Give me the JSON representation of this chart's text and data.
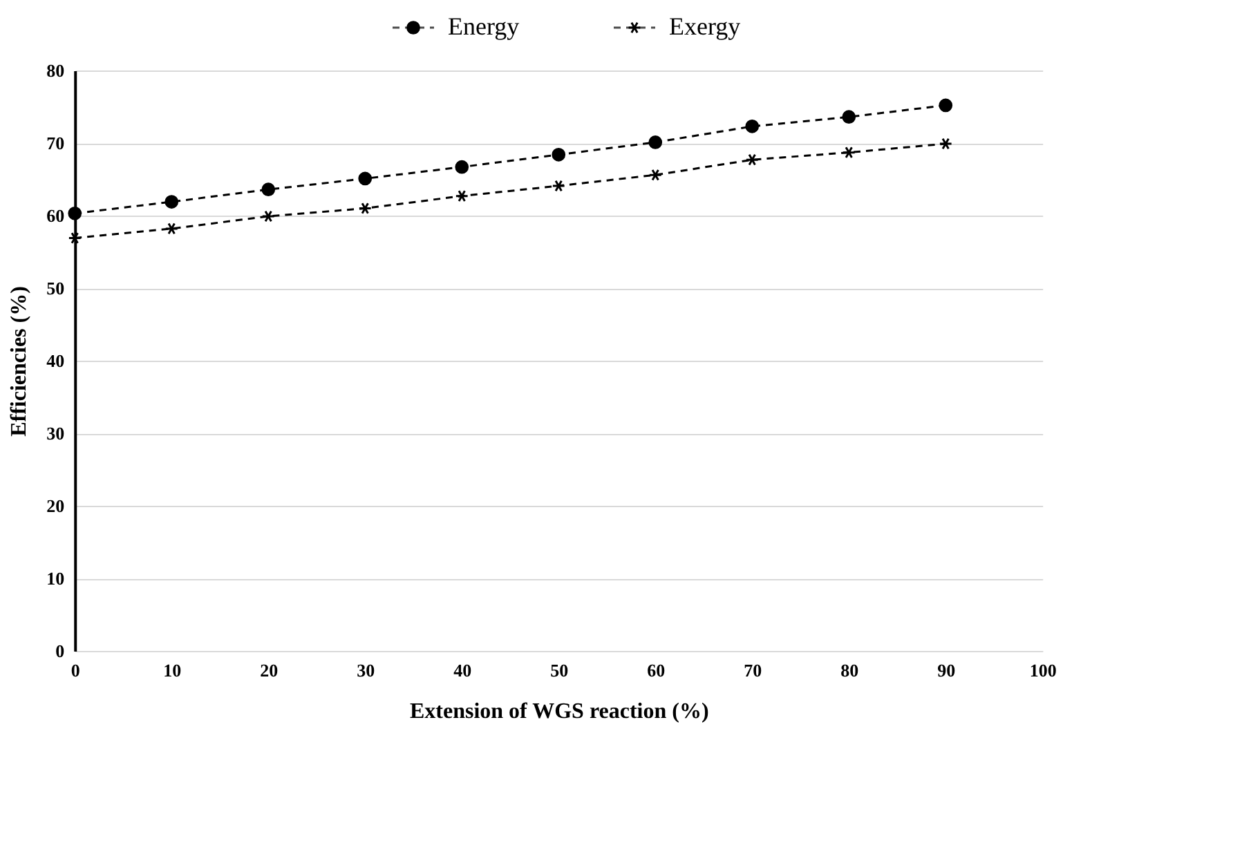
{
  "chart_data": {
    "type": "line",
    "xlabel": "Extension of WGS reaction (%)",
    "ylabel": "Efficiencies (%)",
    "x": [
      0,
      10,
      20,
      30,
      40,
      50,
      60,
      70,
      80,
      90
    ],
    "series": [
      {
        "name": "Energy",
        "color": "#000000",
        "marker": "circle",
        "values": [
          60.3,
          61.9,
          63.6,
          65.1,
          66.7,
          68.4,
          70.1,
          72.3,
          73.6,
          75.2
        ]
      },
      {
        "name": "Exergy",
        "color": "#000000",
        "marker": "cross",
        "values": [
          56.9,
          58.2,
          59.9,
          61.0,
          62.7,
          64.1,
          65.6,
          67.7,
          68.7,
          69.9
        ]
      }
    ],
    "xlim": [
      0,
      100
    ],
    "xticks": [
      0,
      10,
      20,
      30,
      40,
      50,
      60,
      70,
      80,
      90,
      100
    ],
    "ylim": [
      0,
      80
    ],
    "yticks": [
      0,
      10,
      20,
      30,
      40,
      50,
      60,
      70,
      80
    ],
    "grid": "y",
    "legend": "top",
    "line_style": "dashed"
  }
}
